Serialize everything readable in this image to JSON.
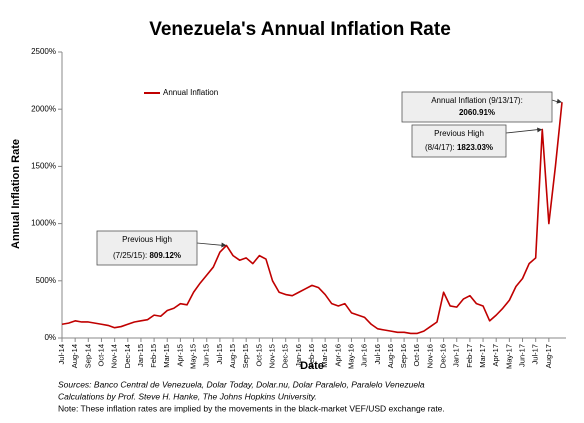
{
  "chart_data": {
    "type": "line",
    "title": "Venezuela's Annual Inflation Rate",
    "x_label": "Date",
    "y_label": "Annual Inflation Rate",
    "legend_position": "upper left",
    "grid": false,
    "ylim": [
      0,
      2500
    ],
    "yticks": [
      {
        "value": 0,
        "label": "0%"
      },
      {
        "value": 500,
        "label": "500%"
      },
      {
        "value": 1000,
        "label": "1000%"
      },
      {
        "value": 1500,
        "label": "1500%"
      },
      {
        "value": 2000,
        "label": "2000%"
      },
      {
        "value": 2500,
        "label": "2500%"
      }
    ],
    "categories": [
      "Jul-14",
      null,
      "Aug-14",
      null,
      "Sep-14",
      null,
      "Oct-14",
      null,
      "Nov-14",
      null,
      "Dec-14",
      null,
      "Jan-15",
      null,
      "Feb-15",
      null,
      "Mar-15",
      null,
      "Apr-15",
      null,
      "May-15",
      null,
      "Jun-15",
      null,
      "Jul-15",
      null,
      "Aug-15",
      null,
      "Sep-15",
      null,
      "Oct-15",
      null,
      "Nov-15",
      null,
      "Dec-15",
      null,
      "Jan-16",
      null,
      "Feb-16",
      null,
      "Mar-16",
      null,
      "Apr-16",
      null,
      "May-16",
      null,
      "Jun-16",
      null,
      "Jul-16",
      null,
      "Aug-16",
      null,
      "Sep-16",
      null,
      "Oct-16",
      null,
      "Nov-16",
      null,
      "Dec-16",
      null,
      "Jan-17",
      null,
      "Feb-17",
      null,
      "Mar-17",
      null,
      "Apr-17",
      null,
      "May-17",
      null,
      "Jun-17",
      null,
      "Jul-17",
      null,
      "Aug-17",
      null,
      null
    ],
    "series": [
      {
        "name": "Annual Inflation",
        "color": "#c00000",
        "values": [
          120,
          130,
          150,
          140,
          140,
          130,
          120,
          110,
          90,
          100,
          120,
          140,
          150,
          160,
          200,
          190,
          240,
          260,
          300,
          290,
          400,
          480,
          550,
          620,
          750,
          809.12,
          720,
          680,
          700,
          650,
          720,
          690,
          500,
          400,
          380,
          370,
          400,
          430,
          460,
          440,
          380,
          300,
          280,
          300,
          220,
          200,
          180,
          120,
          80,
          70,
          60,
          50,
          50,
          40,
          40,
          60,
          100,
          140,
          400,
          280,
          270,
          340,
          370,
          300,
          280,
          150,
          200,
          260,
          330,
          450,
          520,
          650,
          700,
          1823.03,
          1000,
          1500,
          2060.91
        ]
      }
    ],
    "annotations": [
      {
        "line1": "Previous High",
        "line2": "(7/25/15): ",
        "value_label": "809.12%"
      },
      {
        "line1": "Annual Inflation (9/13/17):",
        "value_label": "2060.91%"
      },
      {
        "line1": "Previous High",
        "line2": "(8/4/17): ",
        "value_label": "1823.03%"
      }
    ],
    "notes": [
      "Sources: Banco Central de Venezuela, Dolar Today, Dolar.nu, Dolar Paralelo, Paralelo Venezuela",
      "Calculations by Prof. Steve H. Hanke, The Johns Hopkins University.",
      "Note: These inflation rates are implied by the movements in the black-market VEF/USD exchange rate."
    ]
  }
}
